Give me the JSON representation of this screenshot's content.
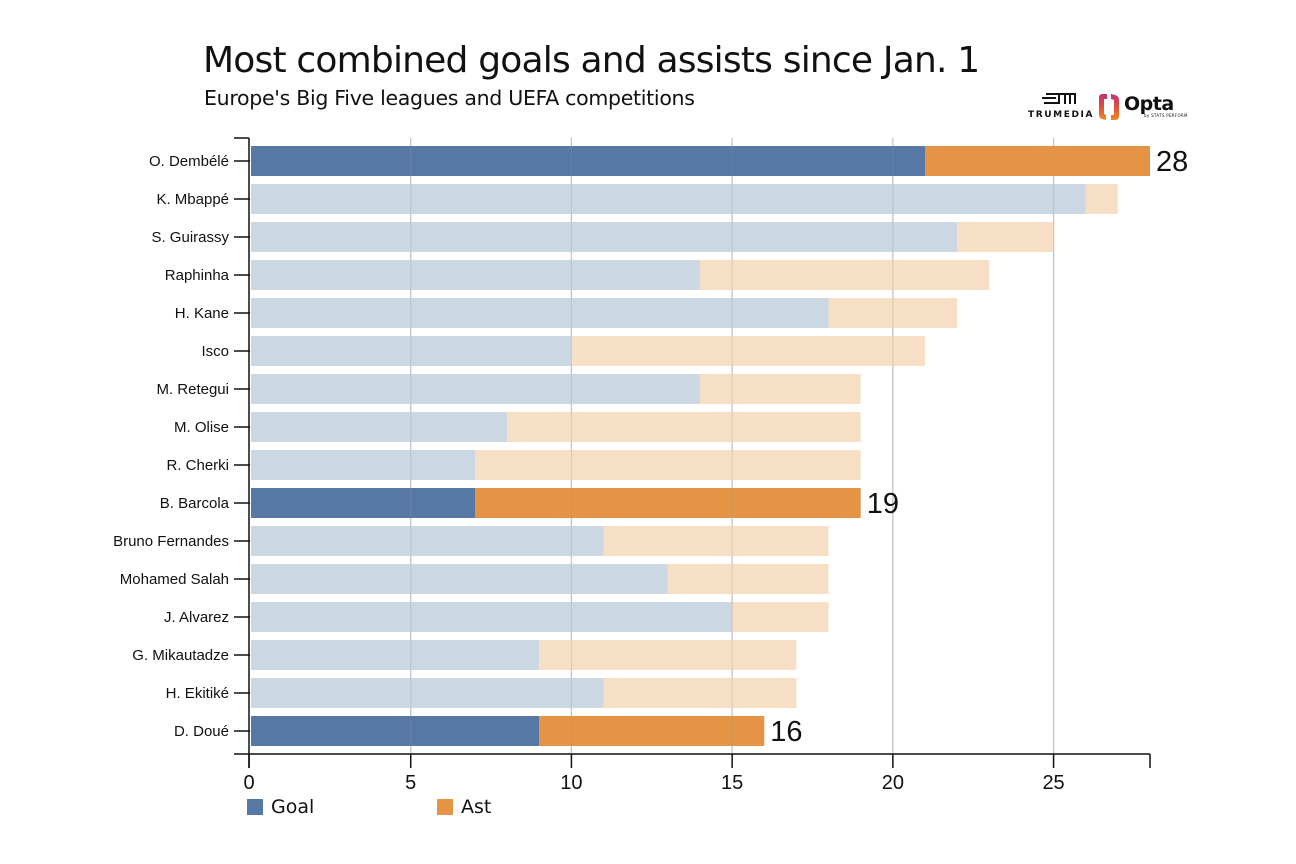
{
  "header": {
    "title": "Most combined goals and assists since Jan. 1",
    "subtitle": "Europe's Big Five leagues and UEFA competitions"
  },
  "logos": {
    "trumedia": {
      "text": "TRUMEDIA",
      "icon": "trumedia-logo-icon"
    },
    "opta": {
      "text": "Opta",
      "subtext": "by STATS PERFORM",
      "icon": "opta-logo-icon"
    }
  },
  "colors": {
    "goal": "#5778a4",
    "ast": "#e49444",
    "goal_faded": "#ccd7e4",
    "ast_faded": "#f7dfc6",
    "grid": "#d0d0d0",
    "axis": "#111111"
  },
  "legend": [
    {
      "key": "goal",
      "label": "Goal"
    },
    {
      "key": "ast",
      "label": "Ast"
    }
  ],
  "chart_data": {
    "type": "bar",
    "orientation": "horizontal",
    "stacked": true,
    "title": "Most combined goals and assists since Jan. 1",
    "subtitle": "Europe's Big Five leagues and UEFA competitions",
    "xlabel": "",
    "ylabel": "",
    "xlim": [
      0,
      28
    ],
    "xticks": [
      0,
      5,
      10,
      15,
      20,
      25
    ],
    "grid": "vertical",
    "legend_position": "bottom-left",
    "categories": [
      "O. Dembélé",
      "K. Mbappé",
      "S. Guirassy",
      "Raphinha",
      "H. Kane",
      "Isco",
      "M. Retegui",
      "M. Olise",
      "R. Cherki",
      "B. Barcola",
      "Bruno Fernandes",
      "Mohamed Salah",
      "J. Alvarez",
      "G. Mikautadze",
      "H. Ekitiké",
      "D. Doué"
    ],
    "series": [
      {
        "name": "Goal",
        "values": [
          21,
          26,
          22,
          14,
          18,
          10,
          14,
          8,
          7,
          7,
          11,
          13,
          15,
          9,
          11,
          9
        ]
      },
      {
        "name": "Ast",
        "values": [
          7,
          1,
          3,
          9,
          4,
          11,
          5,
          11,
          12,
          12,
          7,
          5,
          3,
          8,
          6,
          7
        ]
      }
    ],
    "totals": [
      28,
      27,
      25,
      23,
      22,
      21,
      19,
      19,
      19,
      19,
      18,
      18,
      18,
      17,
      17,
      16
    ],
    "highlighted": [
      "O. Dembélé",
      "B. Barcola",
      "D. Doué"
    ],
    "annotations": [
      {
        "category": "O. Dembélé",
        "text": "28"
      },
      {
        "category": "B. Barcola",
        "text": "19"
      },
      {
        "category": "D. Doué",
        "text": "16"
      }
    ]
  }
}
